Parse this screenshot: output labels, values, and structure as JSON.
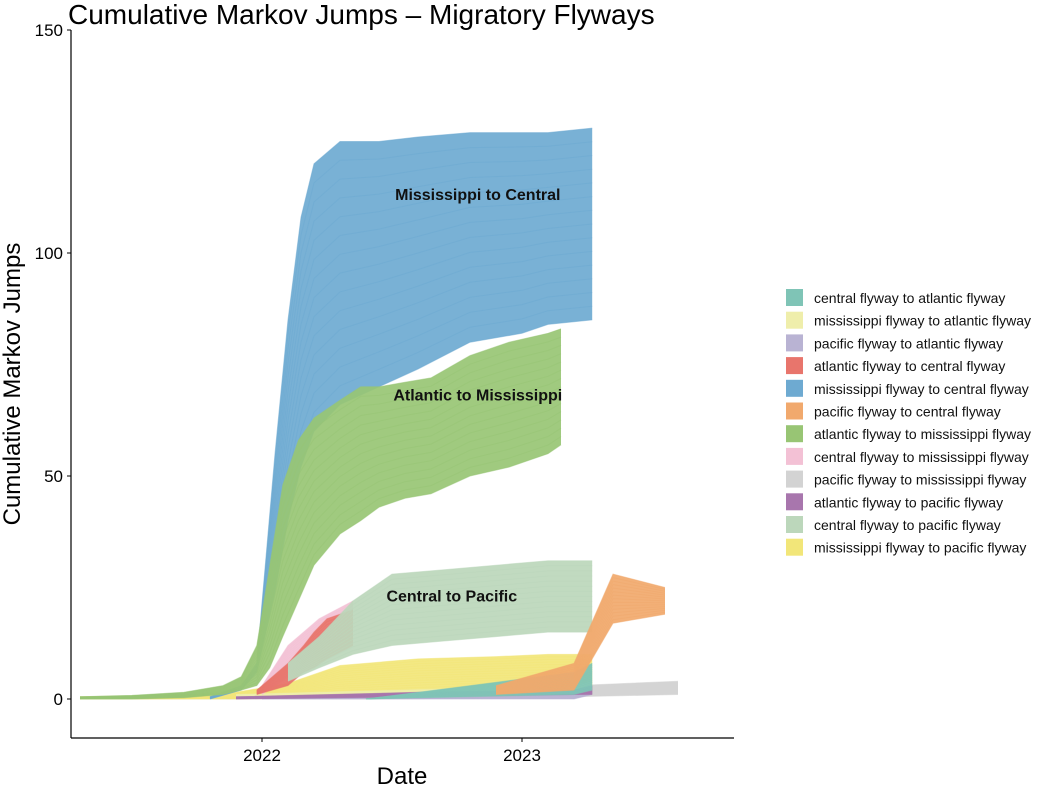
{
  "chart_data": {
    "type": "area",
    "title": "Cumulative Markov Jumps – Migratory Flyways",
    "xlabel": "Date",
    "ylabel": "Cumulative Markov Jumps",
    "xlim": [
      2021.3,
      2023.8
    ],
    "ylim": [
      -8,
      150
    ],
    "xticks": [
      2022,
      2023
    ],
    "xtick_labels": [
      "2022",
      "2023"
    ],
    "yticks": [
      0,
      50,
      100,
      150
    ],
    "ytick_labels": [
      "0",
      "50",
      "100",
      "150"
    ],
    "grid": false,
    "legend_position": "right",
    "annotations": [
      {
        "text": "Mississippi to Central",
        "x": 2022.83,
        "y": 113
      },
      {
        "text": "Atlantic to Mississippi",
        "x": 2022.83,
        "y": 68
      },
      {
        "text": "Central to Pacific",
        "x": 2022.73,
        "y": 23
      }
    ],
    "series": [
      {
        "name": "central flyway to atlantic flyway",
        "color": "#7fc4b6",
        "x": [
          2022.4,
          2023.2,
          2023.27
        ],
        "lower": [
          0,
          1,
          2
        ],
        "upper": [
          0,
          6,
          8
        ]
      },
      {
        "name": "mississippi flyway to atlantic flyway",
        "color": "#efeeab",
        "x": [
          2021.9,
          2023.2,
          2023.27
        ],
        "lower": [
          0,
          1,
          1
        ],
        "upper": [
          1,
          3,
          4
        ]
      },
      {
        "name": "pacific flyway to atlantic flyway",
        "color": "#b9b3d3",
        "x": [
          2022.0,
          2023.2,
          2023.27
        ],
        "lower": [
          0,
          0,
          1
        ],
        "upper": [
          0.5,
          2,
          3
        ]
      },
      {
        "name": "atlantic flyway to central flyway",
        "color": "#e8756c",
        "x": [
          2021.98,
          2022.1,
          2022.16,
          2022.2,
          2022.25,
          2022.35
        ],
        "lower": [
          1,
          3,
          6,
          7,
          9,
          12
        ],
        "upper": [
          2,
          8,
          12,
          15,
          18,
          20
        ]
      },
      {
        "name": "mississippi flyway to central flyway",
        "color": "#6eaad1",
        "x": [
          2021.8,
          2021.92,
          2021.98,
          2022.05,
          2022.1,
          2022.15,
          2022.2,
          2022.3,
          2022.45,
          2022.6,
          2022.8,
          2023.0,
          2023.1,
          2023.27
        ],
        "lower": [
          0,
          2,
          6,
          24,
          40,
          52,
          60,
          66,
          70,
          74,
          80,
          82,
          84,
          85
        ],
        "upper": [
          0.5,
          3,
          8,
          55,
          85,
          108,
          120,
          125,
          125,
          126,
          127,
          127,
          127,
          128
        ]
      },
      {
        "name": "pacific flyway to central flyway",
        "color": "#f1a96d",
        "x": [
          2022.9,
          2023.2,
          2023.35,
          2023.55
        ],
        "lower": [
          1,
          2,
          17,
          19
        ],
        "upper": [
          3,
          8,
          28,
          25
        ]
      },
      {
        "name": "atlantic flyway to mississippi flyway",
        "color": "#98c574",
        "x": [
          2021.3,
          2021.5,
          2021.7,
          2021.85,
          2021.92,
          2021.98,
          2022.03,
          2022.08,
          2022.14,
          2022.2,
          2022.3,
          2022.38,
          2022.45,
          2022.55,
          2022.65,
          2022.8,
          2022.95,
          2023.1,
          2023.15
        ],
        "lower": [
          0,
          0,
          0.3,
          1,
          2,
          3,
          7,
          14,
          22,
          30,
          37,
          40,
          43,
          45,
          46,
          50,
          52,
          55,
          57
        ],
        "upper": [
          0.5,
          0.8,
          1.5,
          3,
          5,
          12,
          30,
          48,
          58,
          63,
          67,
          70,
          70,
          71,
          72,
          77,
          80,
          82,
          83
        ]
      },
      {
        "name": "central flyway to mississippi flyway",
        "color": "#f3c1d5",
        "x": [
          2022.0,
          2022.1,
          2022.22,
          2022.35
        ],
        "lower": [
          1,
          5,
          10,
          14
        ],
        "upper": [
          3,
          12,
          18,
          22
        ]
      },
      {
        "name": "pacific flyway to mississippi flyway",
        "color": "#d3d3d3",
        "x": [
          2021.3,
          2022.0,
          2022.5,
          2023.2,
          2023.6
        ],
        "lower": [
          0,
          0,
          0,
          0.5,
          1
        ],
        "upper": [
          0.5,
          1,
          2,
          3,
          4
        ]
      },
      {
        "name": "atlantic flyway to pacific flyway",
        "color": "#a876ad",
        "x": [
          2021.9,
          2022.6,
          2023.2,
          2023.27
        ],
        "lower": [
          0,
          0.5,
          1,
          1
        ],
        "upper": [
          0.5,
          1.5,
          2,
          3
        ]
      },
      {
        "name": "central flyway to pacific flyway",
        "color": "#bcd7bb",
        "x": [
          2022.1,
          2022.22,
          2022.35,
          2022.5,
          2022.7,
          2022.9,
          2023.1,
          2023.27
        ],
        "lower": [
          4,
          7,
          10,
          12,
          13,
          14,
          15,
          15
        ],
        "upper": [
          8,
          14,
          22,
          28,
          29,
          30,
          31,
          31
        ]
      },
      {
        "name": "mississippi flyway to pacific flyway",
        "color": "#f2e679",
        "x": [
          2021.3,
          2021.6,
          2021.9,
          2022.1,
          2022.3,
          2022.6,
          2022.9,
          2023.1,
          2023.27
        ],
        "lower": [
          0,
          0,
          0,
          0.5,
          1,
          1.5,
          2,
          2,
          2
        ],
        "upper": [
          0.5,
          0.8,
          1.5,
          3.5,
          7.5,
          9,
          9.5,
          10,
          10
        ]
      }
    ],
    "draw_order": [
      8,
      11,
      1,
      2,
      9,
      0,
      7,
      3,
      10,
      5,
      4,
      6
    ]
  }
}
